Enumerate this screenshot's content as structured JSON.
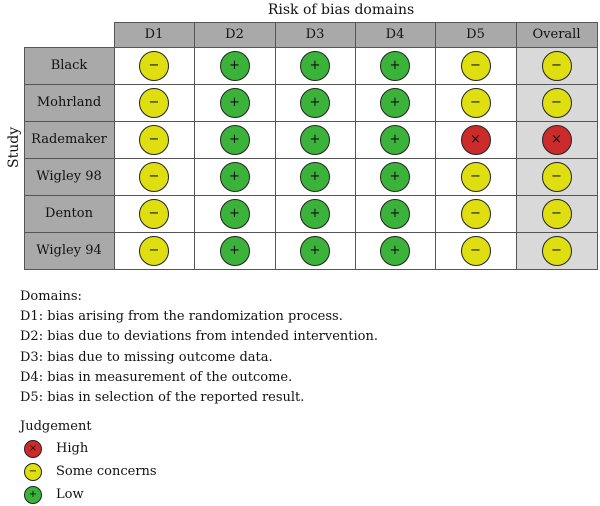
{
  "header": {
    "title": "Risk of bias domains",
    "y_label": "Study"
  },
  "columns": [
    "D1",
    "D2",
    "D3",
    "D4",
    "D5",
    "Overall"
  ],
  "studies": [
    {
      "name": "Black",
      "judgements": [
        "some",
        "low",
        "low",
        "low",
        "some",
        "some"
      ]
    },
    {
      "name": "Mohrland",
      "judgements": [
        "some",
        "low",
        "low",
        "low",
        "some",
        "some"
      ]
    },
    {
      "name": "Rademaker",
      "judgements": [
        "some",
        "low",
        "low",
        "low",
        "high",
        "high"
      ]
    },
    {
      "name": "Wigley 98",
      "judgements": [
        "some",
        "low",
        "low",
        "low",
        "some",
        "some"
      ]
    },
    {
      "name": "Denton",
      "judgements": [
        "some",
        "low",
        "low",
        "low",
        "some",
        "some"
      ]
    },
    {
      "name": "Wigley 94",
      "judgements": [
        "some",
        "low",
        "low",
        "low",
        "some",
        "some"
      ]
    }
  ],
  "symbols": {
    "high": "×",
    "some": "−",
    "low": "+"
  },
  "colors": {
    "high": "#cc2b2b",
    "some": "#dede10",
    "low": "#3bb33b",
    "header_bg": "#a9a9a9",
    "overall_bg": "#d9d9d9"
  },
  "domains": {
    "title": "Domains:",
    "items": [
      "D1: bias arising from the randomization process.",
      "D2: bias due to deviations from intended intervention.",
      "D3: bias due to missing outcome data.",
      "D4: bias in measurement of the outcome.",
      "D5: bias in selection of the reported result."
    ]
  },
  "judgement_legend": {
    "title": "Judgement",
    "items": [
      {
        "level": "high",
        "label": "High"
      },
      {
        "level": "some",
        "label": "Some concerns"
      },
      {
        "level": "low",
        "label": "Low"
      }
    ]
  }
}
